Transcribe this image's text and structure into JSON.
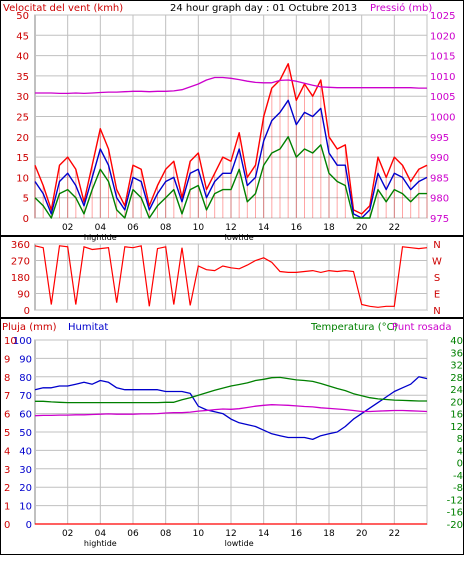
{
  "colors": {
    "wind": "#ff0000",
    "wind_avg": "#0000cc",
    "wind_low": "#008000",
    "pressure": "#cc00cc",
    "direction": "#ff0000",
    "humidity": "#0000cc",
    "temperature": "#008000",
    "dewpoint": "#cc00cc",
    "rain": "#ff0000",
    "grid": "#c0c0c0"
  },
  "chart_data": [
    {
      "type": "line",
      "title": "24 hour graph day : 01 Octubre 2013",
      "ylabel_left": "Velocitat del vent (kmh)",
      "ylabel_right": "Pressió (mb)",
      "ylim_left": [
        0,
        50
      ],
      "ylim_right": [
        975,
        1025
      ],
      "yticks_left": [
        "0",
        "5",
        "10",
        "15",
        "20",
        "25",
        "30",
        "35",
        "40",
        "45",
        "50"
      ],
      "yticks_right": [
        "975",
        "980",
        "985",
        "990",
        "995",
        "1000",
        "1005",
        "1010",
        "1015",
        "1020",
        "1025"
      ],
      "x_ticks": [
        "02",
        "04",
        "06",
        "08",
        "10",
        "12",
        "14",
        "16",
        "18",
        "20",
        "22",
        ""
      ],
      "tide_labels": [
        {
          "hour": 4,
          "text": "hightide"
        },
        {
          "hour": 12.5,
          "text": "lowtide"
        }
      ],
      "x_hours": [
        0,
        0.5,
        1,
        1.5,
        2,
        2.5,
        3,
        3.5,
        4,
        4.5,
        5,
        5.5,
        6,
        6.5,
        7,
        7.5,
        8,
        8.5,
        9,
        9.5,
        10,
        10.5,
        11,
        11.5,
        12,
        12.5,
        13,
        13.5,
        14,
        14.5,
        15,
        15.5,
        16,
        16.5,
        17,
        17.5,
        18,
        18.5,
        19,
        19.5,
        20,
        20.5,
        21,
        21.5,
        22,
        22.5,
        23,
        23.5,
        24
      ],
      "series": [
        {
          "name": "gust",
          "axis": "left",
          "values": [
            13,
            8,
            2,
            13,
            15,
            12,
            4,
            13,
            22,
            17,
            7,
            3,
            13,
            12,
            3,
            8,
            12,
            14,
            5,
            14,
            16,
            7,
            11,
            15,
            14,
            21,
            10,
            13,
            25,
            32,
            34,
            38,
            29,
            33,
            30,
            34,
            20,
            17,
            18,
            2,
            1,
            3,
            15,
            10,
            15,
            13,
            9,
            12,
            13
          ]
        },
        {
          "name": "average",
          "axis": "left",
          "values": [
            9,
            6,
            1,
            9,
            11,
            8,
            3,
            10,
            17,
            13,
            5,
            2,
            10,
            9,
            2,
            6,
            9,
            10,
            4,
            11,
            12,
            5,
            9,
            11,
            11,
            17,
            8,
            10,
            19,
            24,
            26,
            29,
            23,
            26,
            25,
            27,
            16,
            13,
            13,
            1,
            0,
            2,
            11,
            7,
            11,
            10,
            7,
            9,
            10
          ]
        },
        {
          "name": "low",
          "axis": "left",
          "values": [
            5,
            3,
            0,
            6,
            7,
            5,
            1,
            7,
            12,
            9,
            2,
            0,
            7,
            5,
            0,
            3,
            5,
            7,
            1,
            7,
            8,
            2,
            6,
            7,
            7,
            12,
            4,
            6,
            13,
            16,
            17,
            20,
            15,
            17,
            16,
            18,
            11,
            9,
            8,
            0,
            0,
            0,
            7,
            4,
            7,
            6,
            4,
            6,
            6
          ]
        },
        {
          "name": "pressure",
          "axis": "right",
          "values": [
            1005.8,
            1005.8,
            1005.8,
            1005.7,
            1005.7,
            1005.8,
            1005.7,
            1005.8,
            1005.9,
            1006,
            1006,
            1006.1,
            1006.2,
            1006.2,
            1006.1,
            1006.2,
            1006.2,
            1006.3,
            1006.6,
            1007.3,
            1008,
            1009,
            1009.6,
            1009.6,
            1009.4,
            1009.1,
            1008.7,
            1008.4,
            1008.3,
            1008.3,
            1008.9,
            1009,
            1008.7,
            1008.2,
            1007.7,
            1007.3,
            1007.2,
            1007.1,
            1007.1,
            1007.1,
            1007.1,
            1007.1,
            1007.1,
            1007.1,
            1007.1,
            1007.1,
            1007.1,
            1007,
            1007
          ]
        }
      ]
    },
    {
      "type": "scatter",
      "ylabel_right": [
        "N",
        "W",
        "S",
        "E",
        "N"
      ],
      "ylim": [
        0,
        360
      ],
      "yticks": [
        "0",
        "90",
        "180",
        "270",
        "360"
      ],
      "x_hours": [
        0,
        0.5,
        1,
        1.5,
        2,
        2.5,
        3,
        3.5,
        4,
        4.5,
        5,
        5.5,
        6,
        6.5,
        7,
        7.5,
        8,
        8.5,
        9,
        9.5,
        10,
        10.5,
        11,
        11.5,
        12,
        12.5,
        13,
        13.5,
        14,
        14.5,
        15,
        15.5,
        16,
        16.5,
        17,
        17.5,
        18,
        18.5,
        19,
        19.5,
        20,
        20.5,
        21,
        21.5,
        22,
        22.5,
        23,
        23.5,
        24
      ],
      "series": [
        {
          "name": "direction",
          "values": [
            350,
            340,
            30,
            350,
            345,
            30,
            345,
            330,
            335,
            340,
            40,
            345,
            340,
            350,
            20,
            335,
            345,
            30,
            340,
            25,
            240,
            220,
            215,
            240,
            230,
            225,
            245,
            270,
            285,
            260,
            210,
            205,
            205,
            210,
            215,
            205,
            215,
            210,
            215,
            210,
            30,
            20,
            15,
            20,
            20,
            345,
            340,
            335,
            340
          ]
        }
      ]
    },
    {
      "type": "line",
      "ylabel_left": [
        "Pluja (mm)",
        "Humitat"
      ],
      "ylabel_right": [
        "Temperatura (°C)",
        "Punt rosada"
      ],
      "yticks_rain": [
        "0",
        "1",
        "2",
        "3",
        "4",
        "5",
        "6",
        "7",
        "8",
        "9",
        "10"
      ],
      "yticks_humidity": [
        "0",
        "10",
        "20",
        "30",
        "40",
        "50",
        "60",
        "70",
        "80",
        "90",
        "100"
      ],
      "yticks_temp": [
        "-20",
        "-16",
        "-12",
        "-8",
        "-4",
        "0",
        "4",
        "8",
        "12",
        "16",
        "20",
        "24",
        "28",
        "32",
        "36",
        "40"
      ],
      "ylim_humidity": [
        0,
        100
      ],
      "ylim_temp": [
        -20,
        40
      ],
      "x_hours": [
        0,
        0.5,
        1,
        1.5,
        2,
        2.5,
        3,
        3.5,
        4,
        4.5,
        5,
        5.5,
        6,
        6.5,
        7,
        7.5,
        8,
        8.5,
        9,
        9.5,
        10,
        10.5,
        11,
        11.5,
        12,
        12.5,
        13,
        13.5,
        14,
        14.5,
        15,
        15.5,
        16,
        16.5,
        17,
        17.5,
        18,
        18.5,
        19,
        19.5,
        20,
        20.5,
        21,
        21.5,
        22,
        22.5,
        23,
        23.5,
        24
      ],
      "series": [
        {
          "name": "Humitat",
          "axis": "humidity",
          "values": [
            73,
            74,
            74,
            75,
            75,
            76,
            77,
            76,
            78,
            77,
            74,
            73,
            73,
            73,
            73,
            73,
            72,
            72,
            72,
            71,
            64,
            62,
            61,
            60,
            57,
            55,
            54,
            53,
            51,
            49,
            48,
            47,
            47,
            47,
            46,
            48,
            49,
            50,
            53,
            57,
            60,
            63,
            66,
            69,
            72,
            74,
            76,
            80,
            79
          ]
        },
        {
          "name": "Temperatura",
          "axis": "temp",
          "values": [
            20,
            20,
            19.8,
            19.7,
            19.6,
            19.6,
            19.6,
            19.6,
            19.6,
            19.6,
            19.6,
            19.6,
            19.6,
            19.6,
            19.6,
            19.6,
            19.7,
            19.7,
            20.5,
            21.2,
            22,
            22.8,
            23.6,
            24.3,
            25,
            25.5,
            26,
            26.8,
            27.2,
            27.7,
            27.8,
            27.4,
            27,
            26.8,
            26.5,
            25.8,
            25,
            24.2,
            23.5,
            22.5,
            21.8,
            21.2,
            20.8,
            20.6,
            20.4,
            20.3,
            20.2,
            20.1,
            20.1
          ]
        },
        {
          "name": "Punt rosada",
          "axis": "temp",
          "values": [
            15.3,
            15.4,
            15.4,
            15.5,
            15.5,
            15.6,
            15.6,
            15.7,
            15.8,
            15.9,
            15.8,
            15.8,
            15.8,
            15.9,
            15.9,
            16,
            16.2,
            16.3,
            16.3,
            16.5,
            16.8,
            17,
            17.3,
            17.5,
            17.4,
            17.6,
            18,
            18.4,
            18.7,
            18.9,
            18.8,
            18.7,
            18.5,
            18.3,
            18.2,
            17.9,
            17.7,
            17.5,
            17.3,
            17,
            16.7,
            16.7,
            16.8,
            16.9,
            17,
            17,
            16.9,
            16.8,
            16.7
          ]
        },
        {
          "name": "Pluja",
          "axis": "rain",
          "values": [
            0,
            0,
            0,
            0,
            0,
            0,
            0,
            0,
            0,
            0,
            0,
            0,
            0,
            0,
            0,
            0,
            0,
            0,
            0,
            0,
            0,
            0,
            0,
            0,
            0,
            0,
            0,
            0,
            0,
            0,
            0,
            0,
            0,
            0,
            0,
            0,
            0,
            0,
            0,
            0,
            0,
            0,
            0,
            0,
            0,
            0,
            0,
            0,
            0
          ]
        }
      ]
    }
  ]
}
